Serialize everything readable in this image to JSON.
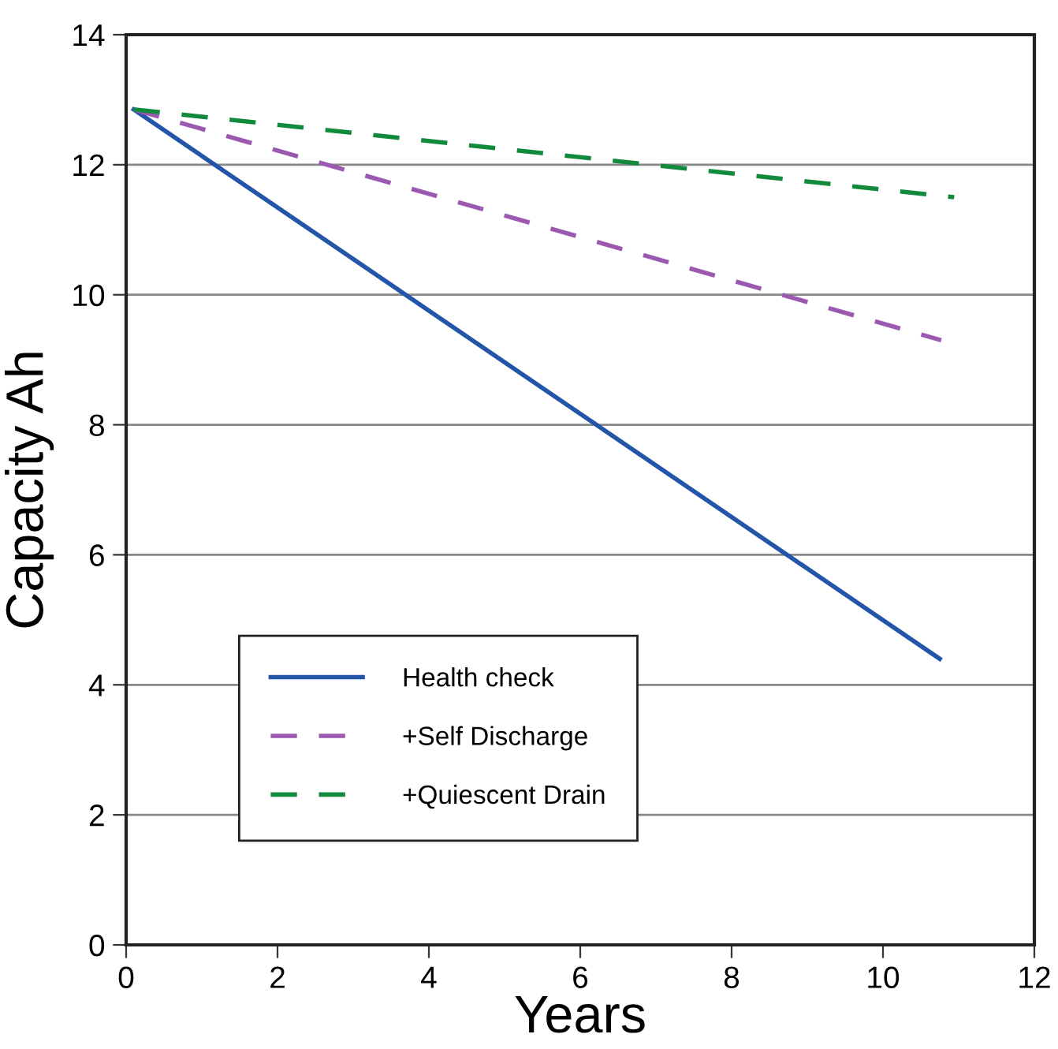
{
  "chart_data": {
    "type": "line",
    "xlabel": "Years",
    "ylabel": "Capacity Ah",
    "xlim": [
      0,
      12
    ],
    "ylim": [
      0,
      14
    ],
    "xticks": [
      0,
      2,
      4,
      6,
      8,
      10,
      12
    ],
    "yticks": [
      0,
      2,
      4,
      6,
      8,
      10,
      12,
      14
    ],
    "grid": "y",
    "legend": "bottom left",
    "series": [
      {
        "name": "Health check",
        "color": "#2355a8",
        "line_style": "solid",
        "x": [
          0.1,
          10.75
        ],
        "values": [
          12.85,
          4.4
        ]
      },
      {
        "name": "+Self Discharge",
        "color": "#9b59b0",
        "line_style": "dashed",
        "x": [
          0.1,
          10.77
        ],
        "values": [
          12.85,
          9.3
        ]
      },
      {
        "name": "+Quiescent Drain",
        "color": "#128a3c",
        "line_style": "dashed",
        "x": [
          0.1,
          10.94
        ],
        "values": [
          12.85,
          11.5
        ]
      }
    ]
  }
}
